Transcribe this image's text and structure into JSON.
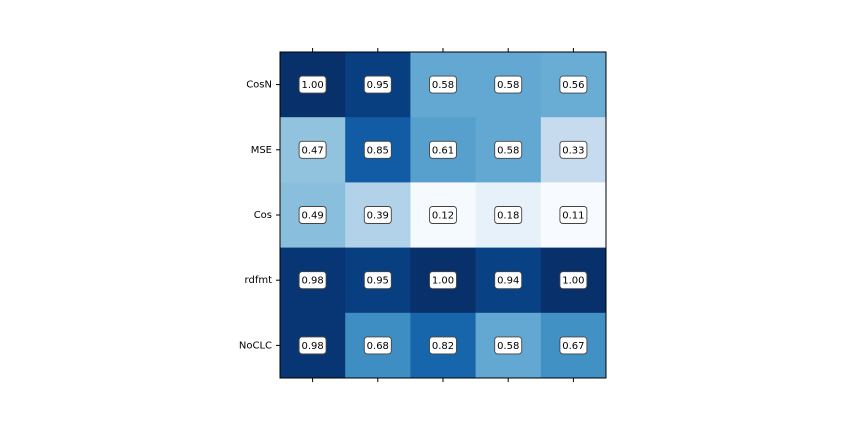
{
  "chart_data": {
    "type": "heatmap",
    "title": "",
    "xlabel": "",
    "ylabel": "",
    "rows": [
      "CosN",
      "MSE",
      "Cos",
      "rdfmt",
      "NoCLC"
    ],
    "columns": [
      "",
      "",
      "",
      "",
      ""
    ],
    "values": [
      [
        1.0,
        0.95,
        0.58,
        0.58,
        0.56
      ],
      [
        0.47,
        0.85,
        0.61,
        0.58,
        0.33
      ],
      [
        0.49,
        0.39,
        0.12,
        0.18,
        0.11
      ],
      [
        0.98,
        0.95,
        1.0,
        0.94,
        1.0
      ],
      [
        0.98,
        0.68,
        0.82,
        0.58,
        0.67
      ]
    ],
    "value_labels": [
      [
        "1.00",
        "0.95",
        "0.58",
        "0.58",
        "0.56"
      ],
      [
        "0.47",
        "0.85",
        "0.61",
        "0.58",
        "0.33"
      ],
      [
        "0.49",
        "0.39",
        "0.12",
        "0.18",
        "0.11"
      ],
      [
        "0.98",
        "0.95",
        "1.00",
        "0.94",
        "1.00"
      ],
      [
        "0.98",
        "0.68",
        "0.82",
        "0.58",
        "0.67"
      ]
    ],
    "colormap": "Blues",
    "value_range": [
      0.11,
      1.0
    ],
    "grid": false,
    "x_tick_labels_visible": false
  }
}
